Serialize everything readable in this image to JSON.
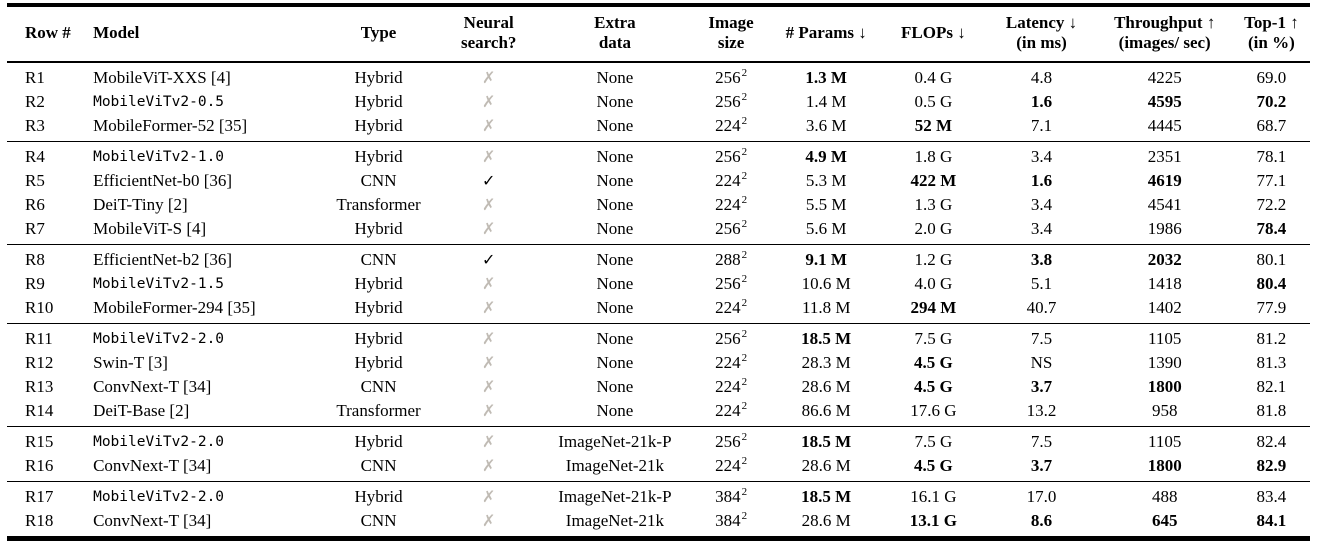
{
  "symbols": {
    "check": "✓",
    "cross": "✗"
  },
  "colors": {
    "text": "#000000",
    "rule": "#000000",
    "cross_gray": "#c0bbb4",
    "background": "#ffffff"
  },
  "table": {
    "columns": [
      {
        "label": "Row #"
      },
      {
        "label": "Model"
      },
      {
        "label": "Type"
      },
      {
        "label": "Neural\nsearch?"
      },
      {
        "label": "Extra\ndata"
      },
      {
        "label": "Image\nsize"
      },
      {
        "label": "# Params ↓"
      },
      {
        "label": "FLOPs ↓"
      },
      {
        "label": "Latency ↓\n(in ms)"
      },
      {
        "label": "Throughput ↑\n(images/ sec)"
      },
      {
        "label": "Top-1 ↑\n(in %)"
      }
    ],
    "groups": [
      {
        "rows": [
          {
            "id": "R1",
            "model": "MobileViT-XXS [4]",
            "mono": false,
            "type": "Hybrid",
            "ns": "cross",
            "extra": "None",
            "img": "256",
            "sup": "2",
            "params": "1.3 M",
            "params_b": true,
            "flops": "0.4 G",
            "flops_b": false,
            "lat": "4.8",
            "lat_b": false,
            "thr": "4225",
            "thr_b": false,
            "top1": "69.0",
            "top1_b": false
          },
          {
            "id": "R2",
            "model": "MobileViTv2-0.5",
            "mono": true,
            "type": "Hybrid",
            "ns": "cross",
            "extra": "None",
            "img": "256",
            "sup": "2",
            "params": "1.4 M",
            "params_b": false,
            "flops": "0.5 G",
            "flops_b": false,
            "lat": "1.6",
            "lat_b": true,
            "thr": "4595",
            "thr_b": true,
            "top1": "70.2",
            "top1_b": true
          },
          {
            "id": "R3",
            "model": "MobileFormer-52 [35]",
            "mono": false,
            "type": "Hybrid",
            "ns": "cross",
            "extra": "None",
            "img": "224",
            "sup": "2",
            "params": "3.6 M",
            "params_b": false,
            "flops": "52 M",
            "flops_b": true,
            "lat": "7.1",
            "lat_b": false,
            "thr": "4445",
            "thr_b": false,
            "top1": "68.7",
            "top1_b": false
          }
        ]
      },
      {
        "rows": [
          {
            "id": "R4",
            "model": "MobileViTv2-1.0",
            "mono": true,
            "type": "Hybrid",
            "ns": "cross",
            "extra": "None",
            "img": "256",
            "sup": "2",
            "params": "4.9 M",
            "params_b": true,
            "flops": "1.8 G",
            "flops_b": false,
            "lat": "3.4",
            "lat_b": false,
            "thr": "2351",
            "thr_b": false,
            "top1": "78.1",
            "top1_b": false
          },
          {
            "id": "R5",
            "model": "EfficientNet-b0 [36]",
            "mono": false,
            "type": "CNN",
            "ns": "check",
            "extra": "None",
            "img": "224",
            "sup": "2",
            "params": "5.3 M",
            "params_b": false,
            "flops": "422 M",
            "flops_b": true,
            "lat": "1.6",
            "lat_b": true,
            "thr": "4619",
            "thr_b": true,
            "top1": "77.1",
            "top1_b": false
          },
          {
            "id": "R6",
            "model": "DeiT-Tiny [2]",
            "mono": false,
            "type": "Transformer",
            "ns": "cross",
            "extra": "None",
            "img": "224",
            "sup": "2",
            "params": "5.5 M",
            "params_b": false,
            "flops": "1.3 G",
            "flops_b": false,
            "lat": "3.4",
            "lat_b": false,
            "thr": "4541",
            "thr_b": false,
            "top1": "72.2",
            "top1_b": false
          },
          {
            "id": "R7",
            "model": "MobileViT-S [4]",
            "mono": false,
            "type": "Hybrid",
            "ns": "cross",
            "extra": "None",
            "img": "256",
            "sup": "2",
            "params": "5.6 M",
            "params_b": false,
            "flops": "2.0 G",
            "flops_b": false,
            "lat": "3.4",
            "lat_b": false,
            "thr": "1986",
            "thr_b": false,
            "top1": "78.4",
            "top1_b": true
          }
        ]
      },
      {
        "rows": [
          {
            "id": "R8",
            "model": "EfficientNet-b2 [36]",
            "mono": false,
            "type": "CNN",
            "ns": "check",
            "extra": "None",
            "img": "288",
            "sup": "2",
            "params": "9.1 M",
            "params_b": true,
            "flops": "1.2 G",
            "flops_b": false,
            "lat": "3.8",
            "lat_b": true,
            "thr": "2032",
            "thr_b": true,
            "top1": "80.1",
            "top1_b": false
          },
          {
            "id": "R9",
            "model": "MobileViTv2-1.5",
            "mono": true,
            "type": "Hybrid",
            "ns": "cross",
            "extra": "None",
            "img": "256",
            "sup": "2",
            "params": "10.6 M",
            "params_b": false,
            "flops": "4.0 G",
            "flops_b": false,
            "lat": "5.1",
            "lat_b": false,
            "thr": "1418",
            "thr_b": false,
            "top1": "80.4",
            "top1_b": true
          },
          {
            "id": "R10",
            "model": "MobileFormer-294 [35]",
            "mono": false,
            "type": "Hybrid",
            "ns": "cross",
            "extra": "None",
            "img": "224",
            "sup": "2",
            "params": "11.8 M",
            "params_b": false,
            "flops": "294 M",
            "flops_b": true,
            "lat": "40.7",
            "lat_b": false,
            "thr": "1402",
            "thr_b": false,
            "top1": "77.9",
            "top1_b": false
          }
        ]
      },
      {
        "rows": [
          {
            "id": "R11",
            "model": "MobileViTv2-2.0",
            "mono": true,
            "type": "Hybrid",
            "ns": "cross",
            "extra": "None",
            "img": "256",
            "sup": "2",
            "params": "18.5 M",
            "params_b": true,
            "flops": "7.5 G",
            "flops_b": false,
            "lat": "7.5",
            "lat_b": false,
            "thr": "1105",
            "thr_b": false,
            "top1": "81.2",
            "top1_b": false
          },
          {
            "id": "R12",
            "model": "Swin-T [3]",
            "mono": false,
            "type": "Hybrid",
            "ns": "cross",
            "extra": "None",
            "img": "224",
            "sup": "2",
            "params": "28.3 M",
            "params_b": false,
            "flops": "4.5 G",
            "flops_b": true,
            "lat": "NS",
            "lat_b": false,
            "thr": "1390",
            "thr_b": false,
            "top1": "81.3",
            "top1_b": false
          },
          {
            "id": "R13",
            "model": "ConvNext-T [34]",
            "mono": false,
            "type": "CNN",
            "ns": "cross",
            "extra": "None",
            "img": "224",
            "sup": "2",
            "params": "28.6 M",
            "params_b": false,
            "flops": "4.5 G",
            "flops_b": true,
            "lat": "3.7",
            "lat_b": true,
            "thr": "1800",
            "thr_b": true,
            "top1": "82.1",
            "top1_b": false
          },
          {
            "id": "R14",
            "model": "DeiT-Base [2]",
            "mono": false,
            "type": "Transformer",
            "ns": "cross",
            "extra": "None",
            "img": "224",
            "sup": "2",
            "params": "86.6 M",
            "params_b": false,
            "flops": "17.6 G",
            "flops_b": false,
            "lat": "13.2",
            "lat_b": false,
            "thr": "958",
            "thr_b": false,
            "top1": "81.8",
            "top1_b": false
          }
        ]
      },
      {
        "rows": [
          {
            "id": "R15",
            "model": "MobileViTv2-2.0",
            "mono": true,
            "type": "Hybrid",
            "ns": "cross",
            "extra": "ImageNet-21k-P",
            "img": "256",
            "sup": "2",
            "params": "18.5 M",
            "params_b": true,
            "flops": "7.5 G",
            "flops_b": false,
            "lat": "7.5",
            "lat_b": false,
            "thr": "1105",
            "thr_b": false,
            "top1": "82.4",
            "top1_b": false
          },
          {
            "id": "R16",
            "model": "ConvNext-T [34]",
            "mono": false,
            "type": "CNN",
            "ns": "cross",
            "extra": "ImageNet-21k",
            "img": "224",
            "sup": "2",
            "params": "28.6 M",
            "params_b": false,
            "flops": "4.5 G",
            "flops_b": true,
            "lat": "3.7",
            "lat_b": true,
            "thr": "1800",
            "thr_b": true,
            "top1": "82.9",
            "top1_b": true
          }
        ]
      },
      {
        "rows": [
          {
            "id": "R17",
            "model": "MobileViTv2-2.0",
            "mono": true,
            "type": "Hybrid",
            "ns": "cross",
            "extra": "ImageNet-21k-P",
            "img": "384",
            "sup": "2",
            "params": "18.5 M",
            "params_b": true,
            "flops": "16.1 G",
            "flops_b": false,
            "lat": "17.0",
            "lat_b": false,
            "thr": "488",
            "thr_b": false,
            "top1": "83.4",
            "top1_b": false
          },
          {
            "id": "R18",
            "model": "ConvNext-T [34]",
            "mono": false,
            "type": "CNN",
            "ns": "cross",
            "extra": "ImageNet-21k",
            "img": "384",
            "sup": "2",
            "params": "28.6 M",
            "params_b": false,
            "flops": "13.1 G",
            "flops_b": true,
            "lat": "8.6",
            "lat_b": true,
            "thr": "645",
            "thr_b": true,
            "top1": "84.1",
            "top1_b": true
          }
        ]
      }
    ]
  }
}
